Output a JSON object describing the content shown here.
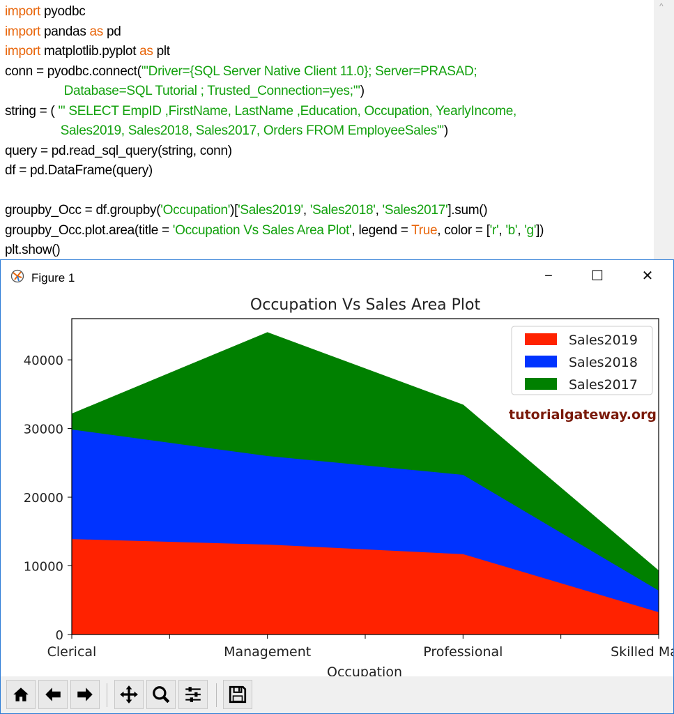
{
  "code": {
    "lines": [
      [
        {
          "t": "import",
          "c": "kw"
        },
        {
          "t": " pyodbc",
          "c": ""
        }
      ],
      [
        {
          "t": "import",
          "c": "kw"
        },
        {
          "t": " pandas ",
          "c": ""
        },
        {
          "t": "as",
          "c": "kw"
        },
        {
          "t": " pd",
          "c": ""
        }
      ],
      [
        {
          "t": "import",
          "c": "kw"
        },
        {
          "t": " matplotlib.pyplot ",
          "c": ""
        },
        {
          "t": "as",
          "c": "kw"
        },
        {
          "t": " plt",
          "c": ""
        }
      ],
      [
        {
          "t": "conn = pyodbc.connect(",
          "c": ""
        },
        {
          "t": "'''Driver={SQL Server Native Client 11.0}; Server=PRASAD;",
          "c": "st"
        }
      ],
      [
        {
          "t": "                 ",
          "c": ""
        },
        {
          "t": "Database=SQL Tutorial ; Trusted_Connection=yes;'''",
          "c": "st"
        },
        {
          "t": ")",
          "c": ""
        }
      ],
      [
        {
          "t": "string = ( ",
          "c": ""
        },
        {
          "t": "''' SELECT EmpID ,FirstName, LastName ,Education, Occupation, YearlyIncome,",
          "c": "st"
        }
      ],
      [
        {
          "t": "                ",
          "c": ""
        },
        {
          "t": "Sales2019, Sales2018, Sales2017, Orders FROM EmployeeSales'''",
          "c": "st"
        },
        {
          "t": ")",
          "c": ""
        }
      ],
      [
        {
          "t": "query = pd.read_sql_query(string, conn)",
          "c": ""
        }
      ],
      [
        {
          "t": "df = pd.DataFrame(query)",
          "c": ""
        }
      ],
      [],
      [
        {
          "t": "groupby_Occ = df.groupby(",
          "c": ""
        },
        {
          "t": "'Occupation'",
          "c": "st"
        },
        {
          "t": ")[",
          "c": ""
        },
        {
          "t": "'Sales2019'",
          "c": "st"
        },
        {
          "t": ", ",
          "c": ""
        },
        {
          "t": "'Sales2018'",
          "c": "st"
        },
        {
          "t": ", ",
          "c": ""
        },
        {
          "t": "'Sales2017'",
          "c": "st"
        },
        {
          "t": "].sum()",
          "c": ""
        }
      ],
      [
        {
          "t": "groupby_Occ.plot.area(title = ",
          "c": ""
        },
        {
          "t": "'Occupation Vs Sales Area Plot'",
          "c": "st"
        },
        {
          "t": ", legend = ",
          "c": ""
        },
        {
          "t": "True",
          "c": "kw"
        },
        {
          "t": ", color = [",
          "c": ""
        },
        {
          "t": "'r'",
          "c": "st"
        },
        {
          "t": ", ",
          "c": ""
        },
        {
          "t": "'b'",
          "c": "st"
        },
        {
          "t": ", ",
          "c": ""
        },
        {
          "t": "'g'",
          "c": "st"
        },
        {
          "t": "])",
          "c": ""
        }
      ],
      [
        {
          "t": "plt.show()",
          "c": ""
        }
      ]
    ]
  },
  "window": {
    "title": "Figure 1",
    "minimize": "−",
    "maximize": "☐",
    "close": "✕"
  },
  "watermark": "tutorialgateway.org",
  "toolbar": {
    "buttons": [
      "home-icon",
      "back-arrow-icon",
      "forward-arrow-icon",
      "pan-icon",
      "zoom-icon",
      "configure-subplots-icon",
      "save-icon"
    ]
  },
  "chart_data": {
    "type": "area",
    "stacked": true,
    "title": "Occupation Vs Sales Area Plot",
    "xlabel": "Occupation",
    "ylabel": "",
    "categories": [
      "Clerical",
      "Management",
      "Professional",
      "Skilled Manual"
    ],
    "series": [
      {
        "name": "Sales2019",
        "color": "#ff2200",
        "values": [
          13900,
          13100,
          11700,
          3250
        ]
      },
      {
        "name": "Sales2018",
        "color": "#0033ff",
        "values": [
          15950,
          12900,
          11550,
          3150
        ]
      },
      {
        "name": "Sales2017",
        "color": "#008000",
        "values": [
          2250,
          17950,
          10150,
          2850
        ]
      }
    ],
    "yticks": [
      0,
      10000,
      20000,
      30000,
      40000
    ],
    "ylim": [
      0,
      46000
    ],
    "grid": false,
    "legend": "top-right"
  }
}
